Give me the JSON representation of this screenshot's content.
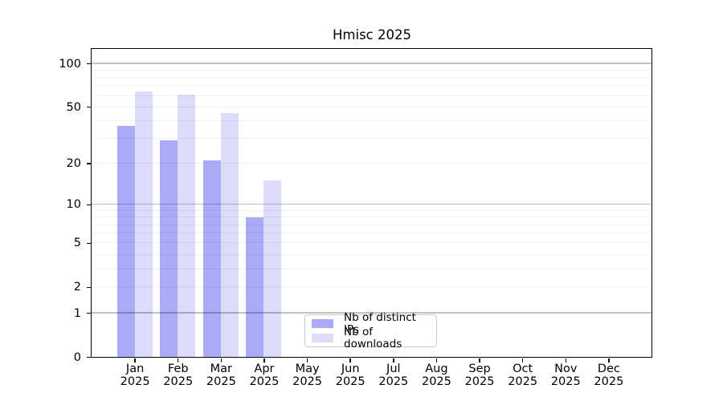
{
  "title": "Hmisc 2025",
  "legend": {
    "items": [
      {
        "label": "Nb of distinct IPs"
      },
      {
        "label": "Nb of downloads"
      }
    ]
  },
  "y_axis": {
    "scale": "log1p",
    "ticks": [
      {
        "value": 100,
        "label": "100"
      },
      {
        "value": 50,
        "label": "50"
      },
      {
        "value": 20,
        "label": "20"
      },
      {
        "value": 10,
        "label": "10"
      },
      {
        "value": 5,
        "label": "5"
      },
      {
        "value": 2,
        "label": "2"
      },
      {
        "value": 1,
        "label": "1"
      },
      {
        "value": 0,
        "label": "0"
      }
    ],
    "major_gridlines": [
      1,
      10,
      100
    ],
    "minor_gridlines": [
      2,
      3,
      4,
      5,
      6,
      7,
      8,
      9,
      20,
      30,
      40,
      50,
      60,
      70,
      80,
      90
    ]
  },
  "x_axis": {
    "months": [
      "Jan",
      "Feb",
      "Mar",
      "Apr",
      "May",
      "Jun",
      "Jul",
      "Aug",
      "Sep",
      "Oct",
      "Nov",
      "Dec"
    ],
    "year": "2025"
  },
  "colors": {
    "ips_bar": "#aaaaf9",
    "downloads_bar": "#dcdcf9",
    "major_grid": "rgba(0,0,0,0.25)",
    "minor_grid": "rgba(0,0,0,0.055)",
    "axis": "#000000",
    "legend_border": "#cbcbcb"
  },
  "chart_data": {
    "type": "bar",
    "title": "Hmisc 2025",
    "categories": [
      "Jan 2025",
      "Feb 2025",
      "Mar 2025",
      "Apr 2025",
      "May 2025",
      "Jun 2025",
      "Jul 2025",
      "Aug 2025",
      "Sep 2025",
      "Oct 2025",
      "Nov 2025",
      "Dec 2025"
    ],
    "series": [
      {
        "name": "Nb of distinct IPs",
        "color": "#aaaaf9",
        "values": [
          37,
          29,
          21,
          8,
          0,
          0,
          0,
          0,
          0,
          0,
          0,
          0
        ]
      },
      {
        "name": "Nb of downloads",
        "color": "#dcdcf9",
        "values": [
          64,
          61,
          45,
          15,
          0,
          0,
          0,
          0,
          0,
          0,
          0,
          0
        ]
      }
    ],
    "xlabel": "",
    "ylabel": "",
    "yscale": "log1p",
    "ylim": [
      0,
      130
    ],
    "y_ticks": [
      0,
      1,
      2,
      5,
      10,
      20,
      50,
      100
    ],
    "grid": true,
    "grid_over_bars": true,
    "legend_position": "lower center"
  }
}
